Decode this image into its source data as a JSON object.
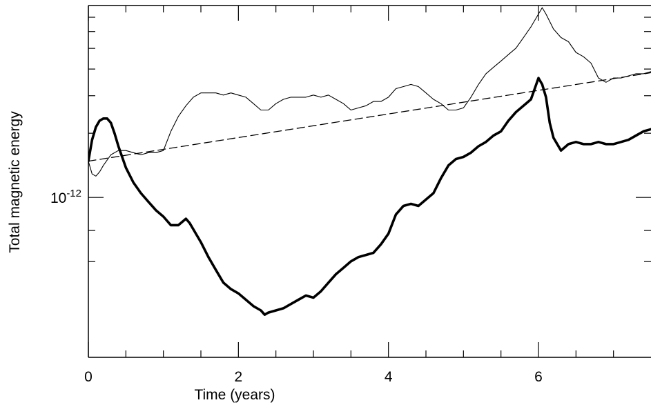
{
  "chart_data": {
    "type": "line",
    "title": "",
    "xlabel": "Time (years)",
    "ylabel": "Total magnetic energy",
    "xlim": [
      0,
      7.5
    ],
    "ylim_log10": [
      -12.75,
      -11.1
    ],
    "yscale": "log",
    "grid": false,
    "x_ticks": [
      {
        "value": 0,
        "label": "0"
      },
      {
        "value": 2,
        "label": "2"
      },
      {
        "value": 4,
        "label": "4"
      },
      {
        "value": 6,
        "label": "6"
      }
    ],
    "x_minor_ticks": [
      0.5,
      1,
      1.5,
      2.5,
      3,
      3.5,
      4.5,
      5,
      5.5,
      6.5,
      7
    ],
    "y_major_ticks": [
      {
        "log10": -12,
        "base": "10",
        "exponent": "-12"
      }
    ],
    "y_minor_ticks_log10": [
      -12.301,
      -12.155,
      -11.699,
      -11.523,
      -11.398,
      -11.301,
      -11.222,
      -11.155
    ],
    "series": [
      {
        "style": "thick",
        "color": "#000000",
        "x": [
          0,
          0.05,
          0.1,
          0.15,
          0.2,
          0.25,
          0.3,
          0.35,
          0.4,
          0.5,
          0.6,
          0.7,
          0.8,
          0.9,
          1.0,
          1.1,
          1.2,
          1.3,
          1.35,
          1.4,
          1.5,
          1.6,
          1.7,
          1.8,
          1.9,
          2.0,
          2.1,
          2.2,
          2.3,
          2.35,
          2.4,
          2.5,
          2.6,
          2.7,
          2.8,
          2.9,
          3.0,
          3.1,
          3.2,
          3.3,
          3.4,
          3.5,
          3.6,
          3.7,
          3.8,
          3.9,
          4.0,
          4.1,
          4.2,
          4.3,
          4.4,
          4.5,
          4.6,
          4.7,
          4.8,
          4.9,
          5.0,
          5.1,
          5.2,
          5.3,
          5.4,
          5.5,
          5.6,
          5.7,
          5.8,
          5.9,
          5.95,
          6.0,
          6.05,
          6.1,
          6.15,
          6.2,
          6.3,
          6.4,
          6.5,
          6.6,
          6.7,
          6.8,
          6.9,
          7.0,
          7.1,
          7.2,
          7.3,
          7.4,
          7.5
        ],
        "y_log10": [
          -11.83,
          -11.73,
          -11.67,
          -11.64,
          -11.63,
          -11.63,
          -11.65,
          -11.7,
          -11.76,
          -11.86,
          -11.93,
          -11.98,
          -12.02,
          -12.06,
          -12.09,
          -12.13,
          -12.13,
          -12.1,
          -12.12,
          -12.15,
          -12.21,
          -12.28,
          -12.34,
          -12.4,
          -12.43,
          -12.45,
          -12.48,
          -12.51,
          -12.53,
          -12.55,
          -12.54,
          -12.53,
          -12.52,
          -12.5,
          -12.48,
          -12.46,
          -12.47,
          -12.44,
          -12.4,
          -12.36,
          -12.33,
          -12.3,
          -12.28,
          -12.27,
          -12.26,
          -12.22,
          -12.17,
          -12.08,
          -12.04,
          -12.03,
          -12.04,
          -12.01,
          -11.98,
          -11.91,
          -11.85,
          -11.82,
          -11.81,
          -11.79,
          -11.76,
          -11.74,
          -11.71,
          -11.69,
          -11.64,
          -11.6,
          -11.57,
          -11.54,
          -11.49,
          -11.44,
          -11.47,
          -11.53,
          -11.65,
          -11.72,
          -11.78,
          -11.75,
          -11.74,
          -11.75,
          -11.75,
          -11.74,
          -11.75,
          -11.75,
          -11.74,
          -11.73,
          -11.71,
          -11.69,
          -11.68
        ]
      },
      {
        "style": "thin",
        "color": "#000000",
        "x": [
          0,
          0.05,
          0.1,
          0.15,
          0.2,
          0.3,
          0.4,
          0.5,
          0.6,
          0.7,
          0.8,
          0.9,
          1.0,
          1.1,
          1.2,
          1.3,
          1.4,
          1.5,
          1.6,
          1.7,
          1.8,
          1.9,
          2.0,
          2.1,
          2.2,
          2.3,
          2.4,
          2.5,
          2.6,
          2.7,
          2.8,
          2.9,
          3.0,
          3.1,
          3.2,
          3.3,
          3.4,
          3.5,
          3.6,
          3.7,
          3.8,
          3.9,
          4.0,
          4.1,
          4.2,
          4.3,
          4.4,
          4.5,
          4.6,
          4.7,
          4.8,
          4.9,
          5.0,
          5.1,
          5.2,
          5.3,
          5.4,
          5.5,
          5.6,
          5.7,
          5.8,
          5.9,
          6.0,
          6.05,
          6.1,
          6.2,
          6.3,
          6.4,
          6.5,
          6.6,
          6.7,
          6.8,
          6.9,
          7.0,
          7.1,
          7.2,
          7.3,
          7.4,
          7.5
        ],
        "y_log10": [
          -11.83,
          -11.89,
          -11.9,
          -11.88,
          -11.85,
          -11.8,
          -11.78,
          -11.78,
          -11.79,
          -11.8,
          -11.79,
          -11.79,
          -11.78,
          -11.69,
          -11.62,
          -11.57,
          -11.53,
          -11.51,
          -11.51,
          -11.51,
          -11.52,
          -11.51,
          -11.52,
          -11.53,
          -11.56,
          -11.59,
          -11.59,
          -11.56,
          -11.54,
          -11.53,
          -11.53,
          -11.53,
          -11.52,
          -11.53,
          -11.52,
          -11.54,
          -11.56,
          -11.59,
          -11.58,
          -11.57,
          -11.55,
          -11.55,
          -11.53,
          -11.49,
          -11.48,
          -11.47,
          -11.48,
          -11.51,
          -11.54,
          -11.56,
          -11.59,
          -11.59,
          -11.58,
          -11.53,
          -11.47,
          -11.42,
          -11.39,
          -11.36,
          -11.33,
          -11.3,
          -11.25,
          -11.2,
          -11.14,
          -11.11,
          -11.14,
          -11.21,
          -11.25,
          -11.27,
          -11.32,
          -11.34,
          -11.37,
          -11.44,
          -11.46,
          -11.44,
          -11.44,
          -11.43,
          -11.42,
          -11.42,
          -11.41
        ]
      },
      {
        "style": "dashed",
        "color": "#000000",
        "x": [
          0,
          7.5
        ],
        "y_log10": [
          -11.83,
          -11.415
        ]
      }
    ]
  }
}
